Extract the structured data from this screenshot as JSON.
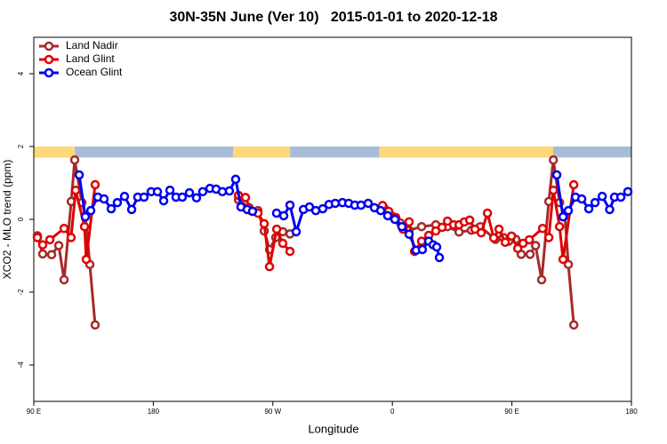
{
  "chart_data": {
    "type": "line",
    "title": "30N-35N June (Ver 10)   2015-01-01 to 2020-12-18",
    "xlabel": "Longitude",
    "ylabel": "XCO2 - MLO trend (ppm)",
    "xlim": [
      90,
      540
    ],
    "ylim": [
      -5,
      5
    ],
    "xticks": [
      {
        "value": 90,
        "label": "90 E"
      },
      180,
      {
        "value": 270,
        "label": "90 W"
      },
      {
        "value": 360,
        "label": "0"
      },
      {
        "value": 450,
        "label": "90 E"
      },
      {
        "value": 540,
        "label": "180"
      }
    ],
    "yticks": [
      -4,
      -2,
      0,
      2,
      4
    ],
    "legend": "top-left",
    "surface_strip": {
      "ylim": [
        1.7,
        2
      ],
      "land_color": "#fdd97a",
      "ocean_color": "#a8bcd8",
      "land": [
        [
          90,
          121
        ],
        [
          240,
          283
        ],
        [
          350,
          481
        ]
      ]
    },
    "series": [
      {
        "name": "Land Nadir",
        "color": "#a52a2a",
        "x": [
          92.7,
          96.7,
          103.4,
          108.8,
          112.8,
          118.2,
          120.8,
          126.2,
          128.8,
          132.2,
          136.2,
          null,
          244.1,
          252.1,
          258.8,
          263.5,
          267.5,
          272.2,
          277.5,
          282.9,
          null,
          353.9,
          359.3,
          366,
          372.6,
          382,
          392.7,
          401.5,
          410.2,
          419.5,
          426.2,
          437.6,
          443.6,
          447.7,
          453,
          457,
          463.7,
          467.8,
          472.4,
          477.8,
          481.2,
          485.9,
          489.9,
          492.5,
          496.6
        ],
        "values": [
          -0.45,
          -0.95,
          -0.97,
          -0.72,
          -1.66,
          0.49,
          1.63,
          0.46,
          0.1,
          -1.24,
          -2.9,
          null,
          0.54,
          0.32,
          0.24,
          -0.32,
          -0.83,
          -0.5,
          -0.34,
          -0.4,
          null,
          0.3,
          0.1,
          -0.1,
          -0.3,
          -0.2,
          -0.15,
          -0.2,
          -0.35,
          -0.3,
          -0.2,
          -0.55,
          -0.5,
          -0.6,
          -0.55,
          -0.96,
          -0.96,
          -0.72,
          -1.66,
          0.49,
          1.63,
          0.46,
          0.1,
          -1.24,
          -2.9
        ]
      },
      {
        "name": "Land Glint",
        "color": "#e00000",
        "x": [
          92.7,
          96.7,
          102.1,
          112.8,
          118.1,
          121.5,
          128.2,
          129.5,
          136.2,
          null,
          244.1,
          249.4,
          253.4,
          258.8,
          263.5,
          267.5,
          272.9,
          277.5,
          282.9,
          null,
          352.6,
          357.2,
          362.6,
          368,
          372.6,
          376.7,
          382,
          387.4,
          392.7,
          397.4,
          401.5,
          406.1,
          410.2,
          414.2,
          418.2,
          422.2,
          426.9,
          431.6,
          436.3,
          440.3,
          445,
          449.7,
          454.4,
          458.4,
          463.1,
          473.1,
          477.8,
          481.2,
          485.9,
          488.5,
          496.6
        ],
        "values": [
          -0.5,
          -0.7,
          -0.56,
          -0.25,
          -0.5,
          0.8,
          -0.2,
          -1.1,
          0.95,
          null,
          0.66,
          0.6,
          0.24,
          0.17,
          -0.12,
          -1.3,
          -0.27,
          -0.66,
          -0.88,
          null,
          0.38,
          0.22,
          0.05,
          -0.27,
          -0.07,
          -0.88,
          -0.6,
          -0.44,
          -0.32,
          -0.22,
          -0.05,
          -0.15,
          -0.15,
          -0.07,
          -0.02,
          -0.27,
          -0.37,
          0.17,
          -0.51,
          -0.27,
          -0.63,
          -0.46,
          -0.8,
          -0.66,
          -0.56,
          -0.25,
          -0.5,
          0.8,
          -0.2,
          -1.1,
          0.95
        ]
      },
      {
        "name": "Ocean Glint",
        "color": "#0000ee",
        "x": [
          124.2,
          128.8,
          132.9,
          138.2,
          142.9,
          148.3,
          152.9,
          158.3,
          163.7,
          168.3,
          173,
          178.4,
          183.1,
          187.8,
          192.5,
          197.1,
          201.8,
          207.2,
          212.5,
          217.2,
          222.6,
          227.3,
          232,
          237.3,
          242,
          246,
          250.7,
          254.7,
          null,
          272.8,
          278.2,
          282.9,
          287.6,
          293,
          297.6,
          302.3,
          307.6,
          312.3,
          317,
          322.4,
          327.1,
          331.7,
          336.4,
          341.8,
          346.5,
          351.2,
          356.5,
          361.9,
          367.2,
          372.6,
          377.9,
          382.6,
          387.3,
          390.7,
          393.4,
          395.4,
          null,
          483.8,
          488.5,
          492.5,
          497.9,
          502.6,
          507.9,
          512.6,
          518,
          523.6,
          527.3,
          532,
          537.3
        ],
        "values": [
          1.22,
          0.07,
          0.24,
          0.61,
          0.56,
          0.29,
          0.46,
          0.63,
          0.27,
          0.61,
          0.61,
          0.76,
          0.76,
          0.51,
          0.8,
          0.61,
          0.61,
          0.73,
          0.59,
          0.76,
          0.85,
          0.83,
          0.76,
          0.78,
          1.1,
          0.34,
          0.27,
          0.22,
          null,
          0.17,
          0.1,
          0.39,
          -0.34,
          0.27,
          0.34,
          0.24,
          0.29,
          0.41,
          0.44,
          0.46,
          0.44,
          0.39,
          0.39,
          0.44,
          0.32,
          0.24,
          0.1,
          0,
          -0.2,
          -0.41,
          -0.85,
          -0.83,
          -0.6,
          -0.7,
          -0.76,
          -1.05,
          null,
          1.22,
          0.07,
          0.24,
          0.61,
          0.56,
          0.29,
          0.46,
          0.63,
          0.27,
          0.61,
          0.61,
          0.76
        ]
      }
    ]
  }
}
